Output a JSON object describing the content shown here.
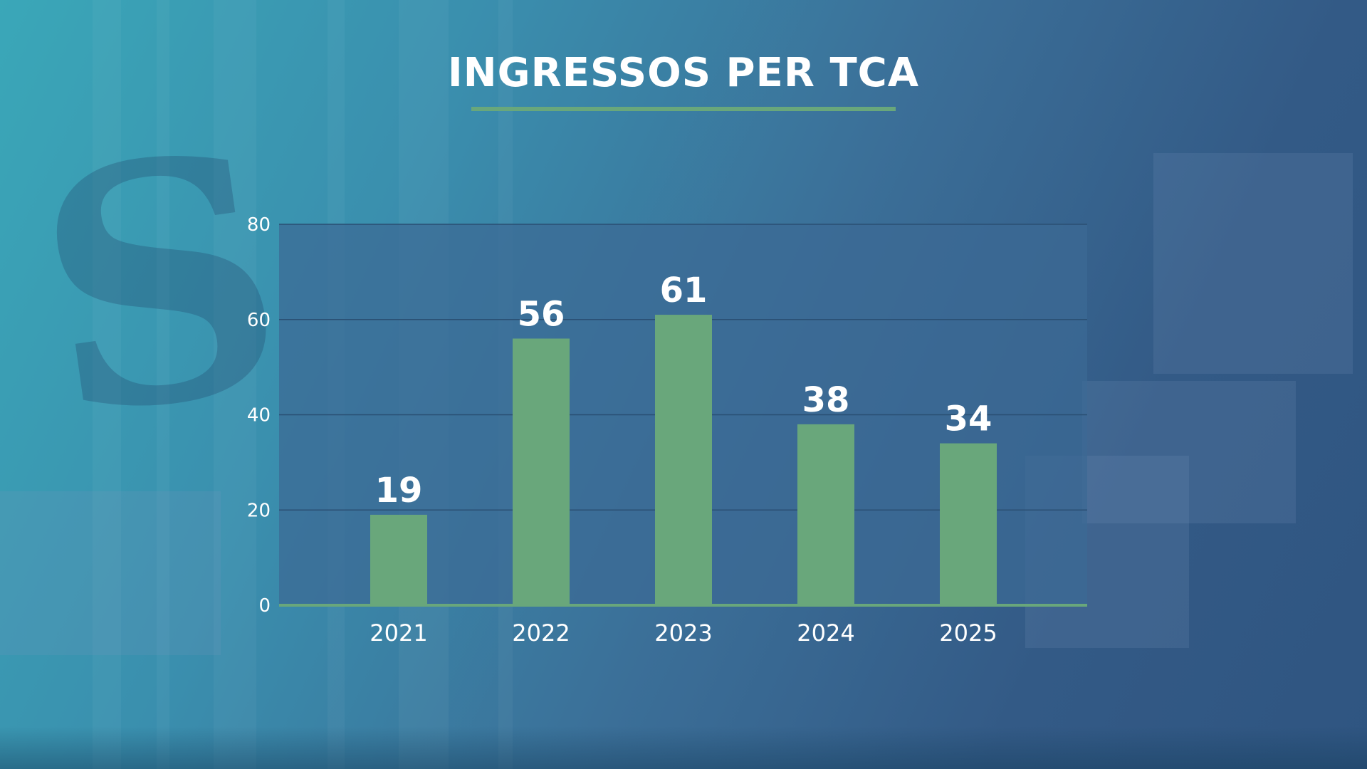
{
  "title": "INGRESSOS PER TCA",
  "colors": {
    "bar": "#69a77b",
    "axis": "#69a77b",
    "plot_bg": "#3b6a94",
    "grid": "#2a4f73",
    "title_underline": "#69a77b",
    "text": "#ffffff"
  },
  "chart_data": {
    "type": "bar",
    "title": "INGRESSOS PER TCA",
    "categories": [
      "2021",
      "2022",
      "2023",
      "2024",
      "2025"
    ],
    "values": [
      19,
      56,
      61,
      38,
      34
    ],
    "data_labels": [
      "19",
      "56",
      "61",
      "38",
      "34"
    ],
    "y_ticks": [
      "0",
      "20",
      "40",
      "60",
      "80"
    ],
    "ylim": [
      0,
      80
    ],
    "xlabel": "",
    "ylabel": "",
    "grid": true,
    "legend": "none"
  }
}
